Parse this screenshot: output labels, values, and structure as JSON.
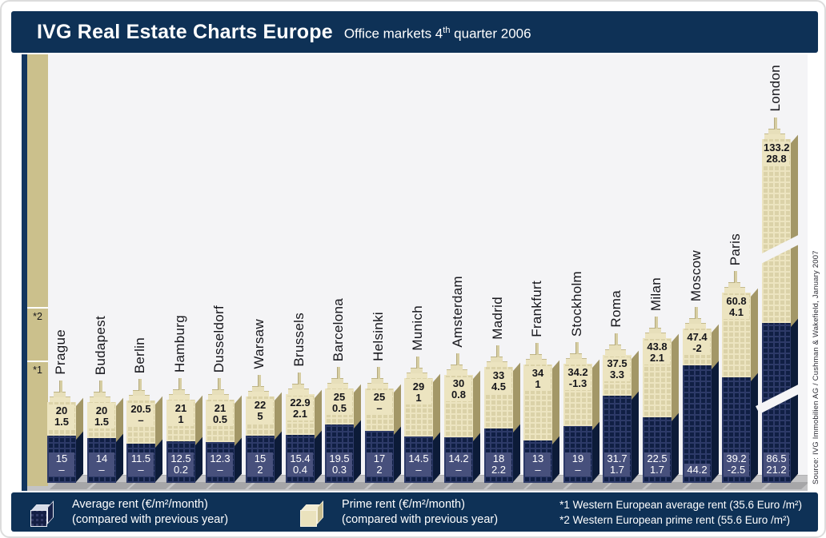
{
  "header": {
    "title": "IVG Real Estate Charts Europe",
    "subtitle_pre": "Office markets 4",
    "subtitle_sup": "th",
    "subtitle_post": " quarter 2006"
  },
  "colors": {
    "navy_band": "#0e3156",
    "building_cream": "#ece4c0",
    "building_navy": "#101f44",
    "ruler_khaki": "#cbc08c",
    "plot_background": "#f4f4f6",
    "ground_gray": "#c3c3c5"
  },
  "chart_data": {
    "type": "bar",
    "title": "IVG Real Estate Charts Europe — Office markets 4th quarter 2006",
    "unit": "€/m²/month",
    "categories": [
      "Prague",
      "Budapest",
      "Berlin",
      "Hamburg",
      "Dusseldorf",
      "Warsaw",
      "Brussels",
      "Barcelona",
      "Helsinki",
      "Munich",
      "Amsterdam",
      "Madrid",
      "Frankfurt",
      "Stockholm",
      "Roma",
      "Milan",
      "Moscow",
      "Paris",
      "London"
    ],
    "series": [
      {
        "name": "Average rent (€/m²/month)",
        "values": [
          15,
          14,
          11.5,
          12.5,
          12.3,
          15,
          15.4,
          19.5,
          17,
          14.5,
          14.2,
          18,
          13,
          19,
          31.7,
          22.5,
          44.2,
          39.2,
          86.5
        ],
        "changes": [
          "–",
          "–",
          "–",
          "0.2",
          "–",
          "2",
          "0.4",
          "0.3",
          "2",
          "–",
          "–",
          "2.2",
          "–",
          "–",
          "1.7",
          "1.7",
          "",
          "-2.5",
          "21.2"
        ]
      },
      {
        "name": "Prime rent (€/m²/month)",
        "values": [
          20,
          20,
          20.5,
          21,
          21,
          22,
          22.9,
          25,
          25,
          29,
          30,
          33,
          34,
          34.2,
          37.5,
          43.8,
          47.4,
          60.8,
          133.2
        ],
        "changes": [
          "1.5",
          "1.5",
          "–",
          "1",
          "0.5",
          "5",
          "2.1",
          "0.5",
          "–",
          "1",
          "0.8",
          "4.5",
          "1",
          "-1.3",
          "3.3",
          "2.1",
          "-2",
          "4.1",
          "28.8"
        ]
      }
    ],
    "references": [
      {
        "marker": "*1",
        "value": 35.6,
        "description": "Western European average rent"
      },
      {
        "marker": "*2",
        "value": 55.6,
        "description": "Western European prime rent"
      }
    ],
    "broken_city": "London",
    "ylim": [
      0,
      140
    ],
    "grid": false,
    "legend_position": "bottom"
  },
  "legend": {
    "avg_line1": "Average rent (€/m²/month)",
    "avg_line2": "(compared with previous year)",
    "prime_line1": "Prime rent (€/m²/month)",
    "prime_line2": "(compared with previous year)",
    "footnote1": "*1 Western European average rent (35.6 Euro /m²)",
    "footnote2": "*2 Western European prime rent (55.6 Euro /m²)"
  },
  "source": "Source: IVG Immobilien AG / Cushman & Wakefield, January 2007"
}
